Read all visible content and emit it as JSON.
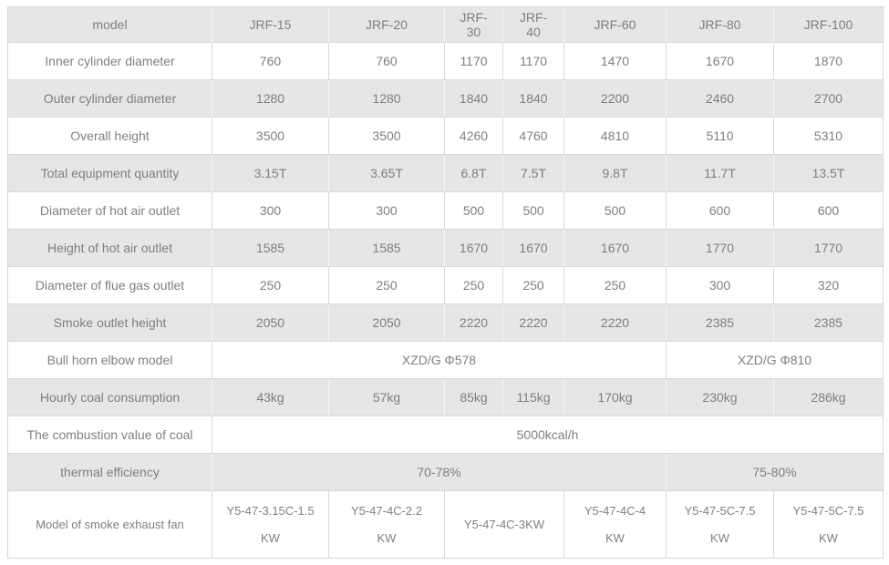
{
  "page": {
    "background": "#ffffff"
  },
  "table": {
    "colors": {
      "shaded_bg": "#e6e6e6",
      "plain_bg": "#ffffff",
      "border": "#d9d9d9",
      "shaded_divider": "#f4f4f4",
      "text": "#7f7f7f"
    },
    "column_headers": [
      "model",
      "JRF-15",
      "JRF-20",
      "JRF-30",
      "JRF-40",
      "JRF-60",
      "JRF-80",
      "JRF-100"
    ],
    "rows": [
      {
        "cells": [
          {
            "text": "model"
          },
          {
            "text": "JRF-15"
          },
          {
            "text": "JRF-20"
          },
          {
            "text": "JRF-30"
          },
          {
            "text": "JRF-40"
          },
          {
            "text": "JRF-60"
          },
          {
            "text": "JRF-80"
          },
          {
            "text": "JRF-100"
          }
        ]
      },
      {
        "cells": [
          {
            "text": "Inner cylinder diameter"
          },
          {
            "text": "760"
          },
          {
            "text": "760"
          },
          {
            "text": "1170"
          },
          {
            "text": "1170"
          },
          {
            "text": "1470"
          },
          {
            "text": "1670"
          },
          {
            "text": "1870"
          }
        ]
      },
      {
        "cells": [
          {
            "text": "Outer cylinder diameter"
          },
          {
            "text": "1280"
          },
          {
            "text": "1280"
          },
          {
            "text": "1840"
          },
          {
            "text": "1840"
          },
          {
            "text": "2200"
          },
          {
            "text": "2460"
          },
          {
            "text": "2700"
          }
        ]
      },
      {
        "cells": [
          {
            "text": "Overall height"
          },
          {
            "text": "3500"
          },
          {
            "text": "3500"
          },
          {
            "text": "4260"
          },
          {
            "text": "4760"
          },
          {
            "text": "4810"
          },
          {
            "text": "5110"
          },
          {
            "text": "5310"
          }
        ]
      },
      {
        "cells": [
          {
            "text": "Total equipment quantity"
          },
          {
            "text": "3.15T"
          },
          {
            "text": "3.65T"
          },
          {
            "text": "6.8T"
          },
          {
            "text": "7.5T"
          },
          {
            "text": "9.8T"
          },
          {
            "text": "11.7T"
          },
          {
            "text": "13.5T"
          }
        ]
      },
      {
        "cells": [
          {
            "text": "Diameter of hot air outlet"
          },
          {
            "text": "300"
          },
          {
            "text": "300"
          },
          {
            "text": "500"
          },
          {
            "text": "500"
          },
          {
            "text": "500"
          },
          {
            "text": "600"
          },
          {
            "text": "600"
          }
        ]
      },
      {
        "cells": [
          {
            "text": "Height of hot air outlet"
          },
          {
            "text": "1585"
          },
          {
            "text": "1585"
          },
          {
            "text": "1670"
          },
          {
            "text": "1670"
          },
          {
            "text": "1670"
          },
          {
            "text": "1770"
          },
          {
            "text": "1770"
          }
        ]
      },
      {
        "cells": [
          {
            "text": "Diameter of flue gas outlet"
          },
          {
            "text": "250"
          },
          {
            "text": "250"
          },
          {
            "text": "250"
          },
          {
            "text": "250"
          },
          {
            "text": "250"
          },
          {
            "text": "300"
          },
          {
            "text": "320"
          }
        ]
      },
      {
        "cells": [
          {
            "text": "Smoke outlet height"
          },
          {
            "text": "2050"
          },
          {
            "text": "2050"
          },
          {
            "text": "2220"
          },
          {
            "text": "2220"
          },
          {
            "text": "2220"
          },
          {
            "text": "2385"
          },
          {
            "text": "2385"
          }
        ]
      },
      {
        "cells": [
          {
            "text": "Bull horn elbow model"
          },
          {
            "text": "XZD/G Φ578",
            "colspan": 5
          },
          {
            "text": "XZD/G Φ810",
            "colspan": 2
          }
        ]
      },
      {
        "cells": [
          {
            "text": "Hourly coal consumption"
          },
          {
            "text": "43kg"
          },
          {
            "text": "57kg"
          },
          {
            "text": "85kg"
          },
          {
            "text": "115kg"
          },
          {
            "text": "170kg"
          },
          {
            "text": "230kg"
          },
          {
            "text": "286kg"
          }
        ]
      },
      {
        "cells": [
          {
            "text": "The combustion value of coal"
          },
          {
            "text": "5000kcal/h",
            "colspan": 7
          }
        ]
      },
      {
        "cells": [
          {
            "text": "thermal efficiency"
          },
          {
            "text": "70-78%",
            "colspan": 5
          },
          {
            "text": "75-80%",
            "colspan": 2
          }
        ]
      },
      {
        "cells": [
          {
            "text": "Model of smoke exhaust fan"
          },
          {
            "text": "Y5-47-3.15C-1.5 KW"
          },
          {
            "text": "Y5-47-4C-2.2 KW"
          },
          {
            "text": "Y5-47-4C-3KW",
            "colspan": 2
          },
          {
            "text": "Y5-47-4C-4 KW"
          },
          {
            "text": "Y5-47-5C-7.5 KW"
          },
          {
            "text": "Y5-47-5C-7.5 KW"
          }
        ]
      }
    ]
  }
}
